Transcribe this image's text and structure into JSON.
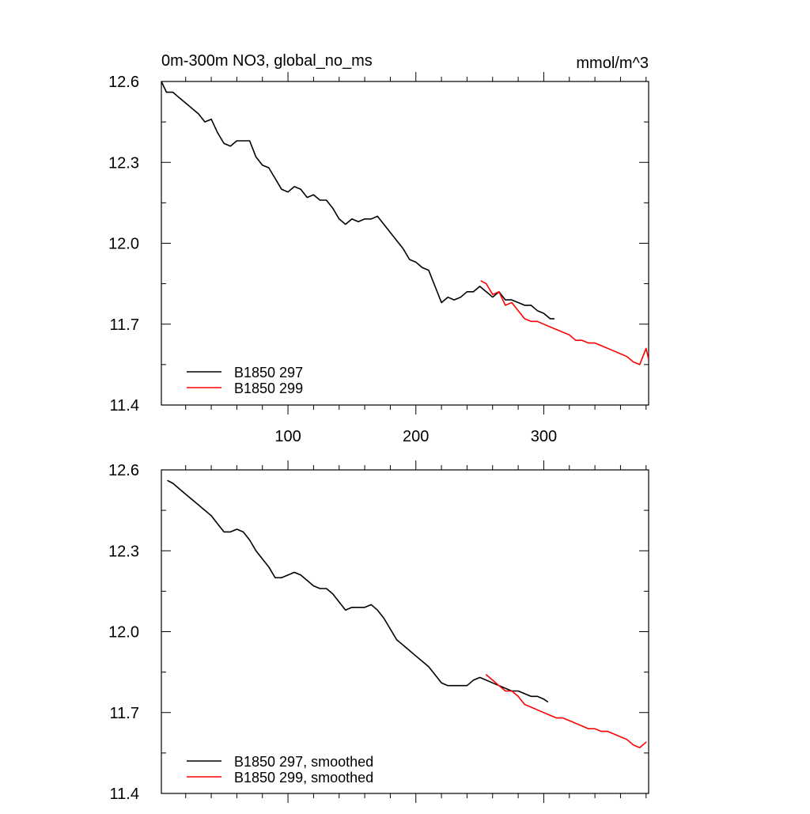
{
  "colors": {
    "series1": "#000000",
    "series2": "#ff0000",
    "axis": "#000000",
    "background": "#ffffff"
  },
  "chart_data": [
    {
      "type": "line",
      "title": "0m-300m NO3, global_no_ms",
      "units": "mmol/m^3",
      "xlabel": "",
      "ylabel": "",
      "xlim": [
        1,
        382
      ],
      "ylim": [
        11.4,
        12.6
      ],
      "xticks": [
        100,
        200,
        300
      ],
      "xtick_labels": [
        "100",
        "200",
        "300"
      ],
      "yticks": [
        11.4,
        11.7,
        12.0,
        12.3,
        12.6
      ],
      "ytick_labels": [
        "11.4",
        "11.7",
        "12.0",
        "12.3",
        "12.6"
      ],
      "legend_position": "bottom-left",
      "grid": false,
      "series": [
        {
          "name": "B1850 297",
          "color": "#000000",
          "x": [
            1,
            5,
            10,
            15,
            20,
            25,
            30,
            35,
            40,
            45,
            50,
            55,
            60,
            65,
            70,
            75,
            80,
            85,
            90,
            95,
            100,
            105,
            110,
            115,
            120,
            125,
            130,
            135,
            140,
            145,
            150,
            155,
            160,
            165,
            170,
            175,
            180,
            185,
            190,
            195,
            200,
            205,
            210,
            215,
            220,
            225,
            230,
            235,
            240,
            245,
            250,
            255,
            260,
            265,
            270,
            275,
            280,
            285,
            290,
            295,
            300,
            305,
            308
          ],
          "y": [
            12.6,
            12.56,
            12.56,
            12.54,
            12.52,
            12.5,
            12.48,
            12.45,
            12.46,
            12.41,
            12.37,
            12.36,
            12.38,
            12.38,
            12.38,
            12.32,
            12.29,
            12.28,
            12.24,
            12.2,
            12.19,
            12.21,
            12.2,
            12.17,
            12.18,
            12.16,
            12.16,
            12.13,
            12.09,
            12.07,
            12.09,
            12.08,
            12.09,
            12.09,
            12.1,
            12.07,
            12.04,
            12.01,
            11.98,
            11.94,
            11.93,
            11.91,
            11.9,
            11.84,
            11.78,
            11.8,
            11.79,
            11.8,
            11.82,
            11.82,
            11.84,
            11.82,
            11.8,
            11.82,
            11.79,
            11.79,
            11.78,
            11.77,
            11.77,
            11.75,
            11.74,
            11.72,
            11.72
          ]
        },
        {
          "name": "B1850 299",
          "color": "#ff0000",
          "x": [
            251,
            255,
            260,
            265,
            270,
            275,
            280,
            285,
            290,
            295,
            300,
            305,
            310,
            315,
            320,
            325,
            330,
            335,
            340,
            345,
            350,
            355,
            360,
            365,
            370,
            375,
            380,
            382
          ],
          "y": [
            11.86,
            11.85,
            11.81,
            11.82,
            11.77,
            11.78,
            11.75,
            11.72,
            11.71,
            11.71,
            11.7,
            11.69,
            11.68,
            11.67,
            11.66,
            11.64,
            11.64,
            11.63,
            11.63,
            11.62,
            11.61,
            11.6,
            11.59,
            11.58,
            11.56,
            11.55,
            11.61,
            11.57
          ]
        }
      ]
    },
    {
      "type": "line",
      "title": "",
      "units": "",
      "xlabel": "",
      "ylabel": "",
      "xlim": [
        1,
        382
      ],
      "ylim": [
        11.4,
        12.6
      ],
      "xticks": [
        100,
        200,
        300
      ],
      "xtick_labels": [],
      "yticks": [
        11.4,
        11.7,
        12.0,
        12.3,
        12.6
      ],
      "ytick_labels": [
        "11.4",
        "11.7",
        "12.0",
        "12.3",
        "12.6"
      ],
      "legend_position": "bottom-left",
      "grid": false,
      "series": [
        {
          "name": "B1850 297, smoothed",
          "color": "#000000",
          "x": [
            6,
            10,
            15,
            20,
            25,
            30,
            35,
            40,
            45,
            50,
            55,
            60,
            65,
            70,
            75,
            80,
            85,
            90,
            95,
            100,
            105,
            110,
            115,
            120,
            125,
            130,
            135,
            140,
            145,
            150,
            155,
            160,
            165,
            170,
            175,
            180,
            185,
            190,
            195,
            200,
            205,
            210,
            215,
            220,
            225,
            230,
            235,
            240,
            245,
            250,
            255,
            260,
            265,
            270,
            275,
            280,
            285,
            290,
            295,
            300,
            303
          ],
          "y": [
            12.56,
            12.55,
            12.53,
            12.51,
            12.49,
            12.47,
            12.45,
            12.43,
            12.4,
            12.37,
            12.37,
            12.38,
            12.37,
            12.34,
            12.3,
            12.27,
            12.24,
            12.2,
            12.2,
            12.21,
            12.22,
            12.21,
            12.19,
            12.17,
            12.16,
            12.16,
            12.14,
            12.11,
            12.08,
            12.09,
            12.09,
            12.09,
            12.1,
            12.08,
            12.05,
            12.01,
            11.97,
            11.95,
            11.93,
            11.91,
            11.89,
            11.87,
            11.84,
            11.81,
            11.8,
            11.8,
            11.8,
            11.8,
            11.82,
            11.83,
            11.82,
            11.81,
            11.8,
            11.79,
            11.78,
            11.78,
            11.77,
            11.76,
            11.76,
            11.75,
            11.74
          ]
        },
        {
          "name": "B1850 299, smoothed",
          "color": "#ff0000",
          "x": [
            255,
            260,
            265,
            270,
            275,
            280,
            285,
            290,
            295,
            300,
            305,
            310,
            315,
            320,
            325,
            330,
            335,
            340,
            345,
            350,
            355,
            360,
            365,
            370,
            375,
            380
          ],
          "y": [
            11.84,
            11.82,
            11.8,
            11.78,
            11.78,
            11.76,
            11.73,
            11.72,
            11.71,
            11.7,
            11.69,
            11.68,
            11.68,
            11.67,
            11.66,
            11.65,
            11.64,
            11.64,
            11.63,
            11.63,
            11.62,
            11.61,
            11.6,
            11.58,
            11.57,
            11.59
          ]
        }
      ]
    }
  ]
}
